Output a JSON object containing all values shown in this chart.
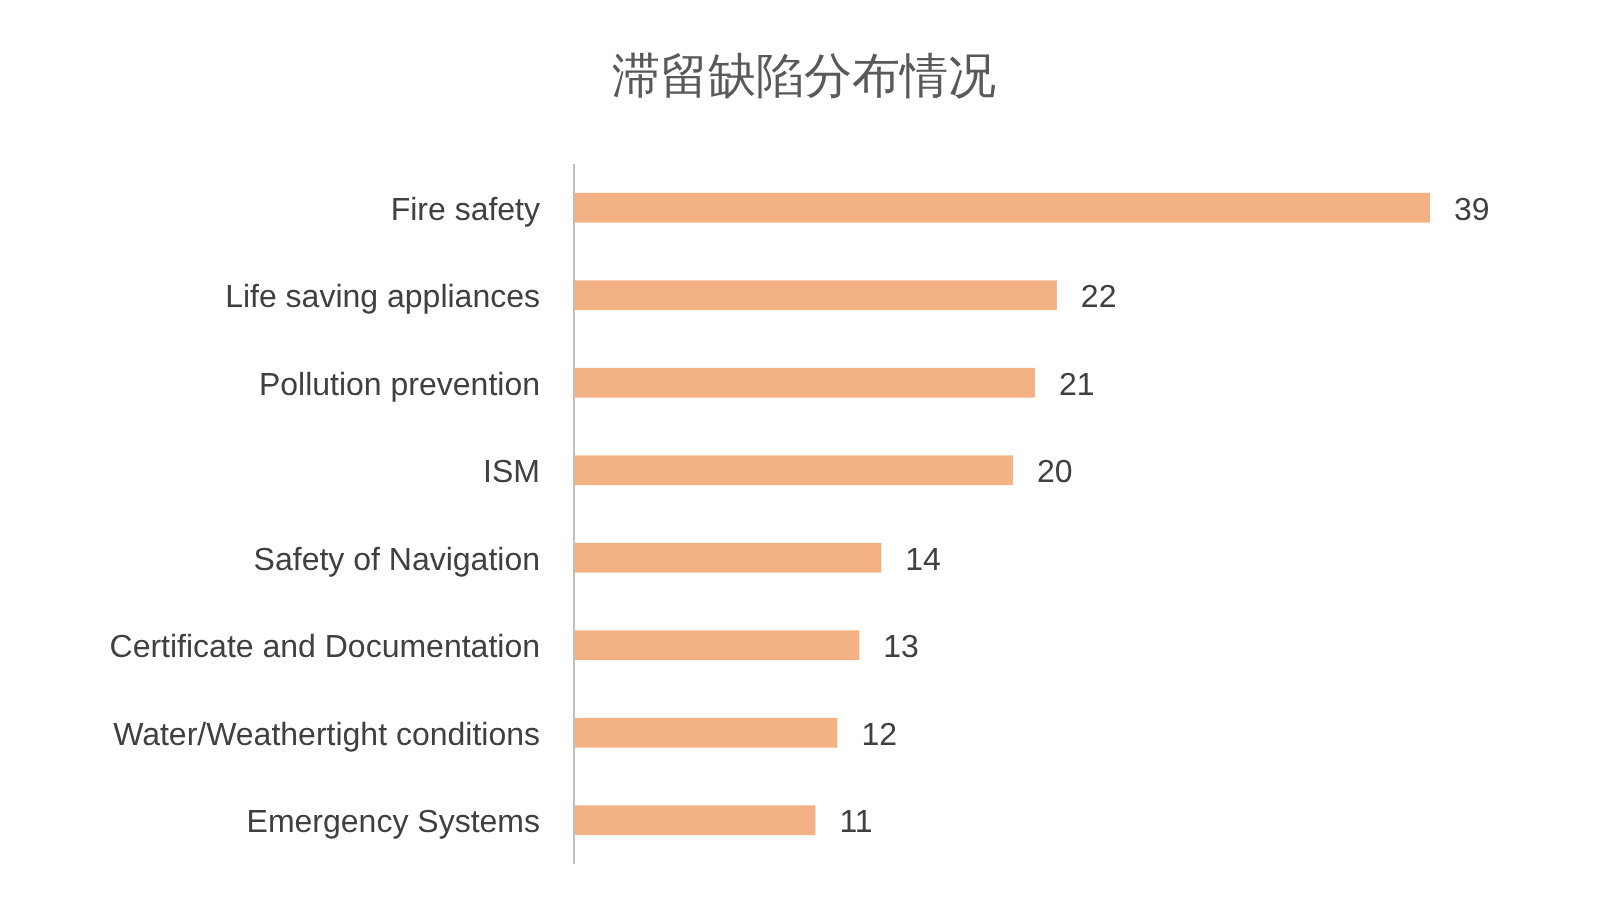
{
  "chart_data": {
    "type": "bar",
    "orientation": "horizontal",
    "title": "滞留缺陷分布情况",
    "categories": [
      "Fire safety",
      "Life saving appliances",
      "Pollution prevention",
      "ISM",
      "Safety of Navigation",
      "Certificate and Documentation",
      "Water/Weathertight conditions",
      "Emergency Systems"
    ],
    "values": [
      39,
      22,
      21,
      20,
      14,
      13,
      12,
      11
    ],
    "color": "#f4b183",
    "data_labels": true
  }
}
